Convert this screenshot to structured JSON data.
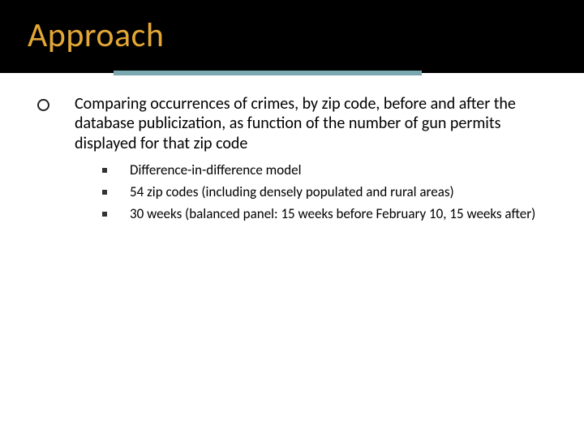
{
  "slide": {
    "title": "Approach",
    "title_color": "#e3a735",
    "title_band_bg": "#000000",
    "underline_color": "#7aa8b0",
    "body_text_color": "#000000",
    "background_color": "#ffffff",
    "title_fontsize": 42,
    "body_fontsize": 20,
    "sub_fontsize": 17,
    "main_bullet": {
      "text": "Comparing occurrences of crimes, by zip code, before and after the database publicization, as function of the number of gun permits displayed for that zip code"
    },
    "sub_bullets": [
      {
        "text": "Difference-in-difference model"
      },
      {
        "text": "54 zip codes (including densely populated and rural areas)"
      },
      {
        "text": "30 weeks (balanced panel: 15 weeks before February 10, 15 weeks after)"
      }
    ]
  }
}
